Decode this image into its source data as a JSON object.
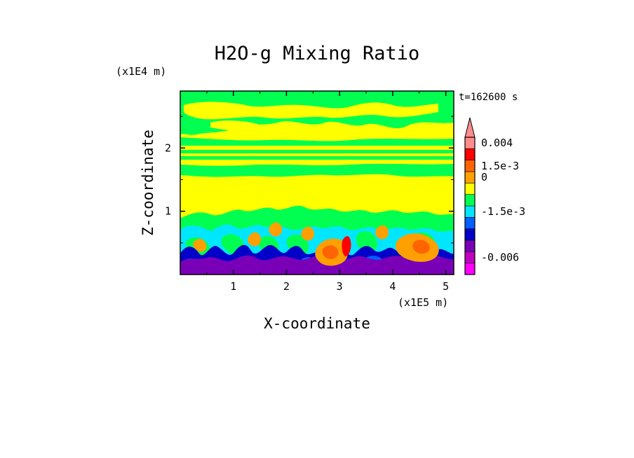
{
  "chart_data": {
    "type": "heatmap",
    "title": "H2O-g Mixing Ratio",
    "xlabel": "X-coordinate",
    "ylabel": "Z-coordinate",
    "x_unit": "(x1E5 m)",
    "y_unit": "(x1E4 m)",
    "time_label": "t=162600 s",
    "xlim": [
      0,
      5.15
    ],
    "ylim": [
      0,
      2.9
    ],
    "x_ticks": [
      {
        "value": 1,
        "label": "1"
      },
      {
        "value": 2,
        "label": "2"
      },
      {
        "value": 3,
        "label": "3"
      },
      {
        "value": 4,
        "label": "4"
      },
      {
        "value": 5,
        "label": "5"
      }
    ],
    "y_ticks": [
      {
        "value": 1,
        "label": "1"
      },
      {
        "value": 2,
        "label": "2"
      }
    ],
    "colorbar": {
      "levels": [
        {
          "color": "#ff00ff"
        },
        {
          "color": "#c000c0"
        },
        {
          "color": "#7a00b8"
        },
        {
          "color": "#0000c8"
        },
        {
          "color": "#0060ff"
        },
        {
          "color": "#00e6ff"
        },
        {
          "color": "#00ff50"
        },
        {
          "color": "#ffff00"
        },
        {
          "color": "#ffa000"
        },
        {
          "color": "#ff6400"
        },
        {
          "color": "#ff0000"
        },
        {
          "color": "#ff8c8c"
        }
      ],
      "labels": [
        {
          "text": "0.004",
          "level_index": 11
        },
        {
          "text": "1.5e-3",
          "level_index": 9
        },
        {
          "text": "0",
          "level_index": 8
        },
        {
          "text": "-1.5e-3",
          "level_index": 5
        },
        {
          "text": "-0.006",
          "level_index": 1
        }
      ],
      "extend": "max"
    },
    "field_bands": [
      {
        "name": "upper-yellow",
        "z_range": [
          0.9,
          2.9
        ],
        "color": "#ffff00"
      },
      {
        "name": "upper-green-layers",
        "color": "#00ff50"
      },
      {
        "name": "cyan-layer",
        "z_range": [
          0.45,
          0.85
        ],
        "color": "#00e6ff"
      },
      {
        "name": "blue-layer",
        "z_range": [
          0.2,
          0.55
        ],
        "color": "#0000c8"
      },
      {
        "name": "purple-base",
        "z_range": [
          0.0,
          0.3
        ],
        "color": "#7a00b8"
      }
    ]
  }
}
